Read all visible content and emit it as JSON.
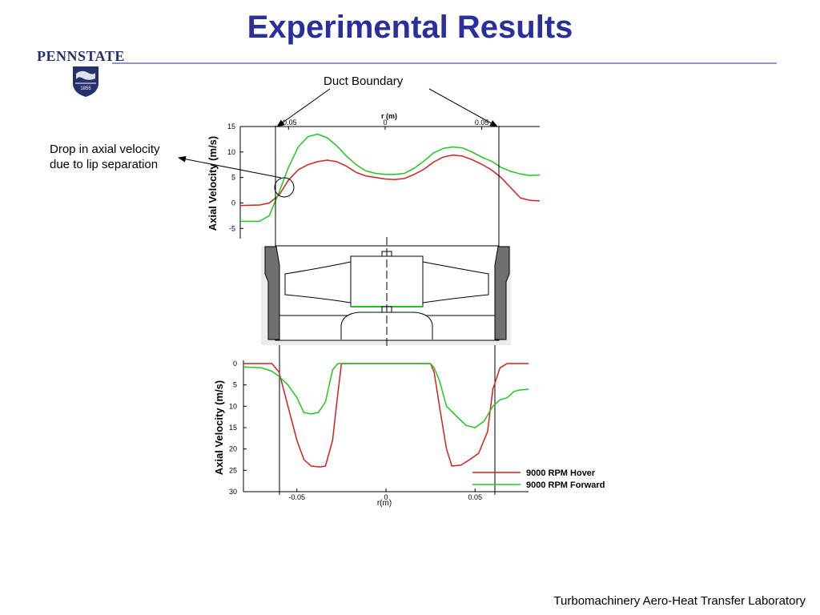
{
  "slide": {
    "title": "Experimental Results",
    "logo_text": "PENNSTATE",
    "logo_year": "1855",
    "footer": "Turbomachinery Aero-Heat Transfer Laboratory",
    "callouts": {
      "duct": "Duct Boundary",
      "drop_line1": "Drop in axial velocity",
      "drop_line2": "due to lip separation"
    }
  },
  "colors": {
    "title": "#2a2f9c",
    "hover": "#d42020",
    "forward": "#1ec81e"
  },
  "chart_data": [
    {
      "type": "line",
      "xlabel": "r (m)",
      "ylabel": "Axial Velocity (m/s)",
      "xlim": [
        -0.075,
        0.08
      ],
      "ylim": [
        -7,
        15
      ],
      "x_ticks": [
        -0.05,
        0,
        0.05
      ],
      "x_tick_labels": [
        "-0.05",
        "0",
        "0.05"
      ],
      "y_ticks": [
        15,
        10,
        5,
        0,
        -5
      ],
      "x_axis_position": "top",
      "series": [
        {
          "key": "hover",
          "x": [
            -0.075,
            -0.065,
            -0.06,
            -0.055,
            -0.05,
            -0.045,
            -0.04,
            -0.035,
            -0.03,
            -0.025,
            -0.02,
            -0.015,
            -0.01,
            -0.005,
            0,
            0.005,
            0.01,
            0.015,
            0.02,
            0.025,
            0.03,
            0.035,
            0.04,
            0.045,
            0.05,
            0.055,
            0.06,
            0.065,
            0.07,
            0.075,
            0.08
          ],
          "values": [
            -0.5,
            -0.4,
            0,
            1.5,
            4.5,
            6.5,
            7.5,
            8.1,
            8.4,
            8.1,
            7.2,
            6.0,
            5.3,
            5.0,
            4.7,
            4.6,
            4.8,
            5.6,
            6.6,
            8.0,
            9.0,
            9.4,
            9.2,
            8.5,
            7.6,
            6.5,
            5.0,
            3.0,
            1.0,
            0.5,
            0.4
          ]
        },
        {
          "key": "forward",
          "x": [
            -0.075,
            -0.065,
            -0.06,
            -0.055,
            -0.05,
            -0.045,
            -0.04,
            -0.035,
            -0.03,
            -0.025,
            -0.02,
            -0.015,
            -0.01,
            -0.005,
            0,
            0.005,
            0.01,
            0.015,
            0.02,
            0.025,
            0.03,
            0.035,
            0.04,
            0.045,
            0.05,
            0.055,
            0.06,
            0.065,
            0.07,
            0.075,
            0.08
          ],
          "values": [
            -3.6,
            -3.6,
            -2.5,
            2.0,
            7.0,
            11.0,
            13.0,
            13.5,
            12.8,
            11.2,
            9.2,
            7.5,
            6.3,
            5.8,
            5.6,
            5.6,
            5.8,
            6.8,
            8.2,
            9.8,
            10.7,
            11.0,
            10.8,
            10.0,
            9.0,
            8.2,
            7.0,
            6.2,
            5.7,
            5.4,
            5.5
          ]
        }
      ]
    },
    {
      "type": "line",
      "xlabel": "r(m)",
      "ylabel": "Axial Velocity (m/s)",
      "xlim": [
        -0.08,
        0.08
      ],
      "ylim": [
        0,
        30
      ],
      "y_inverted": true,
      "x_ticks": [
        -0.05,
        0,
        0.05
      ],
      "x_tick_labels": [
        "-0.05",
        "0",
        "0.05"
      ],
      "y_ticks": [
        0,
        5,
        10,
        15,
        20,
        25,
        30
      ],
      "series": [
        {
          "key": "hover",
          "name": "9000 RPM Hover",
          "x": [
            -0.08,
            -0.068,
            -0.064,
            -0.06,
            -0.055,
            -0.05,
            -0.046,
            -0.042,
            -0.037,
            -0.034,
            -0.03,
            -0.027,
            -0.025,
            0,
            0.025,
            0.027,
            0.03,
            0.034,
            0.037,
            0.042,
            0.047,
            0.052,
            0.057,
            0.06,
            0.064,
            0.068,
            0.08
          ],
          "values": [
            0,
            0,
            0,
            2,
            10,
            18,
            22.5,
            24,
            24.2,
            24.0,
            18,
            7,
            0,
            0,
            0,
            2,
            10,
            20,
            24,
            23.8,
            22.5,
            21,
            16,
            6,
            1,
            0,
            0
          ]
        },
        {
          "key": "forward",
          "name": "9000 RPM Forward",
          "x": [
            -0.08,
            -0.07,
            -0.064,
            -0.06,
            -0.055,
            -0.05,
            -0.046,
            -0.042,
            -0.038,
            -0.034,
            -0.03,
            -0.027,
            -0.025,
            0,
            0.025,
            0.027,
            0.03,
            0.034,
            0.04,
            0.045,
            0.05,
            0.055,
            0.06,
            0.064,
            0.068,
            0.072,
            0.075,
            0.08
          ],
          "values": [
            0.8,
            1.0,
            1.8,
            3,
            5,
            8,
            11.5,
            11.8,
            11.5,
            9,
            1.5,
            0,
            0,
            0,
            0,
            1,
            4,
            10,
            12.5,
            14.5,
            15,
            13.5,
            10,
            8.5,
            8,
            6.5,
            6.2,
            6.0
          ]
        }
      ],
      "legend_position": "bottom-right"
    }
  ]
}
